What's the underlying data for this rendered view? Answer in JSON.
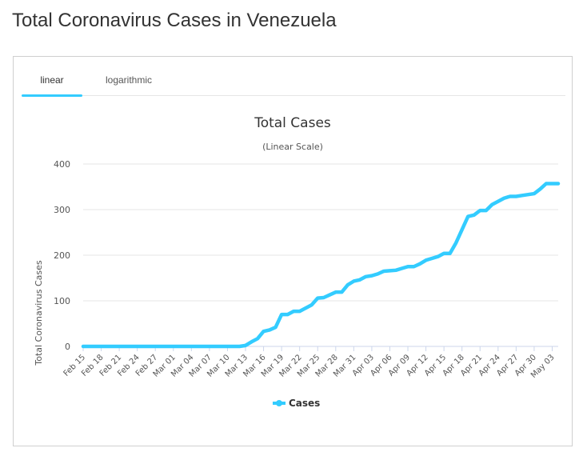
{
  "page": {
    "title": "Total Coronavirus Cases in Venezuela"
  },
  "tabs": [
    {
      "label": "linear",
      "active": true
    },
    {
      "label": "logarithmic",
      "active": false
    }
  ],
  "colors": {
    "series": "#33ccff",
    "grid": "#e6e6e6",
    "tab_active": "#33ccff"
  },
  "chart_data": {
    "type": "line",
    "title": "Total Cases",
    "subtitle": "(Linear Scale)",
    "ylabel": "Total Coronavirus Cases",
    "xlabel": "",
    "ylim": [
      0,
      400
    ],
    "yticks": [
      0,
      100,
      200,
      300,
      400
    ],
    "grid": true,
    "legend": "bottom-center",
    "categories": [
      "Feb 15",
      "Feb 16",
      "Feb 17",
      "Feb 18",
      "Feb 19",
      "Feb 20",
      "Feb 21",
      "Feb 22",
      "Feb 23",
      "Feb 24",
      "Feb 25",
      "Feb 26",
      "Feb 27",
      "Feb 28",
      "Feb 29",
      "Mar 01",
      "Mar 02",
      "Mar 03",
      "Mar 04",
      "Mar 05",
      "Mar 06",
      "Mar 07",
      "Mar 08",
      "Mar 09",
      "Mar 10",
      "Mar 11",
      "Mar 12",
      "Mar 13",
      "Mar 14",
      "Mar 15",
      "Mar 16",
      "Mar 17",
      "Mar 18",
      "Mar 19",
      "Mar 20",
      "Mar 21",
      "Mar 22",
      "Mar 23",
      "Mar 24",
      "Mar 25",
      "Mar 26",
      "Mar 27",
      "Mar 28",
      "Mar 29",
      "Mar 30",
      "Mar 31",
      "Apr 01",
      "Apr 02",
      "Apr 03",
      "Apr 04",
      "Apr 05",
      "Apr 06",
      "Apr 07",
      "Apr 08",
      "Apr 09",
      "Apr 10",
      "Apr 11",
      "Apr 12",
      "Apr 13",
      "Apr 14",
      "Apr 15",
      "Apr 16",
      "Apr 17",
      "Apr 18",
      "Apr 19",
      "Apr 20",
      "Apr 21",
      "Apr 22",
      "Apr 23",
      "Apr 24",
      "Apr 25",
      "Apr 26",
      "Apr 27",
      "Apr 28",
      "Apr 29",
      "Apr 30",
      "May 01",
      "May 02",
      "May 03",
      "May 04"
    ],
    "xtick_labels": [
      "Feb 15",
      "Feb 18",
      "Feb 21",
      "Feb 24",
      "Feb 27",
      "Mar 01",
      "Mar 04",
      "Mar 07",
      "Mar 10",
      "Mar 13",
      "Mar 16",
      "Mar 19",
      "Mar 22",
      "Mar 25",
      "Mar 28",
      "Mar 31",
      "Apr 03",
      "Apr 06",
      "Apr 09",
      "Apr 12",
      "Apr 15",
      "Apr 18",
      "Apr 21",
      "Apr 24",
      "Apr 27",
      "Apr 30",
      "May 03"
    ],
    "series": [
      {
        "name": "Cases",
        "values": [
          0,
          0,
          0,
          0,
          0,
          0,
          0,
          0,
          0,
          0,
          0,
          0,
          0,
          0,
          0,
          0,
          0,
          0,
          0,
          0,
          0,
          0,
          0,
          0,
          0,
          0,
          0,
          2,
          10,
          17,
          33,
          36,
          42,
          70,
          70,
          77,
          77,
          84,
          91,
          106,
          107,
          113,
          119,
          119,
          135,
          143,
          146,
          153,
          155,
          159,
          165,
          166,
          167,
          171,
          175,
          175,
          181,
          189,
          193,
          197,
          204,
          204,
          227,
          256,
          285,
          288,
          298,
          298,
          311,
          318,
          325,
          329,
          329,
          331,
          333,
          335,
          345,
          357,
          357,
          357
        ]
      }
    ]
  }
}
